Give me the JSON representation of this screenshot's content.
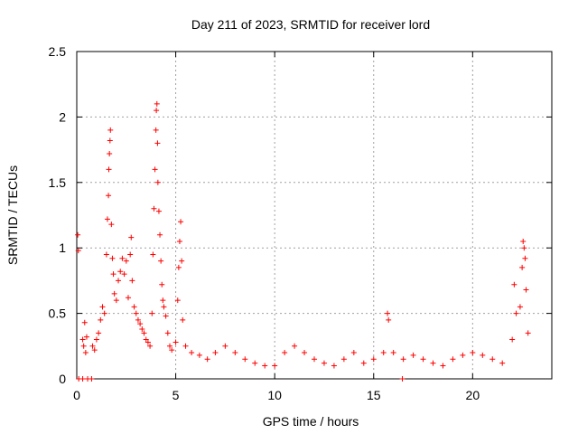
{
  "chart_data": {
    "type": "scatter",
    "title": "Day 211 of 2023, SRMTID for receiver lord",
    "xlabel": "GPS time / hours",
    "ylabel": "SRMTID / TECUs",
    "xlim": [
      0,
      24
    ],
    "ylim": [
      0,
      2.5
    ],
    "xticks": [
      0,
      5,
      10,
      15,
      20
    ],
    "xtick_labels": [
      "0",
      "5",
      "10",
      "15",
      "20"
    ],
    "yticks": [
      0,
      0.5,
      1,
      1.5,
      2,
      2.5
    ],
    "ytick_labels": [
      "0",
      "0.5",
      "1",
      "1.5",
      "2",
      "2.5"
    ],
    "grid": true,
    "marker": "+",
    "series": [
      {
        "name": "SRMTID",
        "color": "#ff0000",
        "points": [
          [
            0.05,
            1.1
          ],
          [
            0.08,
            0.98
          ],
          [
            0.1,
            0.0
          ],
          [
            0.3,
            0.0
          ],
          [
            0.55,
            0.0
          ],
          [
            0.75,
            0.0
          ],
          [
            0.3,
            0.3
          ],
          [
            0.35,
            0.25
          ],
          [
            0.4,
            0.43
          ],
          [
            0.45,
            0.2
          ],
          [
            0.5,
            0.32
          ],
          [
            0.8,
            0.25
          ],
          [
            0.9,
            0.22
          ],
          [
            1.0,
            0.3
          ],
          [
            1.1,
            0.35
          ],
          [
            1.2,
            0.45
          ],
          [
            1.3,
            0.55
          ],
          [
            1.4,
            0.5
          ],
          [
            1.5,
            0.95
          ],
          [
            1.55,
            1.22
          ],
          [
            1.6,
            1.4
          ],
          [
            1.62,
            1.6
          ],
          [
            1.65,
            1.72
          ],
          [
            1.68,
            1.82
          ],
          [
            1.7,
            1.9
          ],
          [
            1.75,
            1.18
          ],
          [
            1.8,
            0.92
          ],
          [
            1.85,
            0.8
          ],
          [
            1.9,
            0.65
          ],
          [
            2.0,
            0.6
          ],
          [
            2.1,
            0.75
          ],
          [
            2.2,
            0.82
          ],
          [
            2.3,
            0.92
          ],
          [
            2.4,
            0.8
          ],
          [
            2.5,
            0.9
          ],
          [
            2.6,
            0.62
          ],
          [
            2.7,
            0.95
          ],
          [
            2.75,
            1.08
          ],
          [
            2.8,
            0.75
          ],
          [
            2.9,
            0.55
          ],
          [
            3.0,
            0.5
          ],
          [
            3.1,
            0.45
          ],
          [
            3.2,
            0.42
          ],
          [
            3.3,
            0.38
          ],
          [
            3.4,
            0.35
          ],
          [
            3.5,
            0.3
          ],
          [
            3.6,
            0.28
          ],
          [
            3.7,
            0.25
          ],
          [
            3.8,
            0.5
          ],
          [
            3.85,
            0.95
          ],
          [
            3.9,
            1.3
          ],
          [
            3.95,
            1.6
          ],
          [
            4.0,
            1.9
          ],
          [
            4.02,
            2.05
          ],
          [
            4.05,
            2.1
          ],
          [
            4.08,
            1.8
          ],
          [
            4.1,
            1.5
          ],
          [
            4.15,
            1.28
          ],
          [
            4.2,
            1.1
          ],
          [
            4.25,
            0.9
          ],
          [
            4.3,
            0.72
          ],
          [
            4.35,
            0.6
          ],
          [
            4.4,
            0.55
          ],
          [
            4.5,
            0.48
          ],
          [
            4.6,
            0.35
          ],
          [
            4.7,
            0.25
          ],
          [
            4.8,
            0.22
          ],
          [
            5.0,
            0.28
          ],
          [
            5.1,
            0.6
          ],
          [
            5.15,
            0.85
          ],
          [
            5.2,
            1.05
          ],
          [
            5.25,
            1.2
          ],
          [
            5.3,
            0.9
          ],
          [
            5.35,
            0.45
          ],
          [
            5.5,
            0.25
          ],
          [
            5.8,
            0.2
          ],
          [
            6.2,
            0.18
          ],
          [
            6.6,
            0.15
          ],
          [
            7.0,
            0.2
          ],
          [
            7.5,
            0.25
          ],
          [
            8.0,
            0.2
          ],
          [
            8.5,
            0.15
          ],
          [
            9.0,
            0.12
          ],
          [
            9.5,
            0.1
          ],
          [
            10.0,
            0.1
          ],
          [
            10.5,
            0.2
          ],
          [
            11.0,
            0.25
          ],
          [
            11.5,
            0.2
          ],
          [
            12.0,
            0.15
          ],
          [
            12.5,
            0.12
          ],
          [
            13.0,
            0.1
          ],
          [
            13.5,
            0.15
          ],
          [
            14.0,
            0.2
          ],
          [
            14.5,
            0.12
          ],
          [
            15.0,
            0.15
          ],
          [
            15.5,
            0.2
          ],
          [
            15.7,
            0.5
          ],
          [
            15.75,
            0.45
          ],
          [
            16.0,
            0.2
          ],
          [
            16.5,
            0.15
          ],
          [
            16.45,
            0.0
          ],
          [
            17.0,
            0.18
          ],
          [
            17.5,
            0.15
          ],
          [
            18.0,
            0.12
          ],
          [
            18.5,
            0.1
          ],
          [
            19.0,
            0.15
          ],
          [
            19.5,
            0.18
          ],
          [
            20.0,
            0.2
          ],
          [
            20.5,
            0.18
          ],
          [
            21.0,
            0.15
          ],
          [
            21.5,
            0.12
          ],
          [
            22.0,
            0.3
          ],
          [
            22.1,
            0.72
          ],
          [
            22.2,
            0.5
          ],
          [
            22.4,
            0.55
          ],
          [
            22.5,
            0.85
          ],
          [
            22.55,
            1.05
          ],
          [
            22.6,
            1.0
          ],
          [
            22.65,
            0.92
          ],
          [
            22.7,
            0.68
          ],
          [
            22.8,
            0.35
          ]
        ]
      }
    ]
  }
}
